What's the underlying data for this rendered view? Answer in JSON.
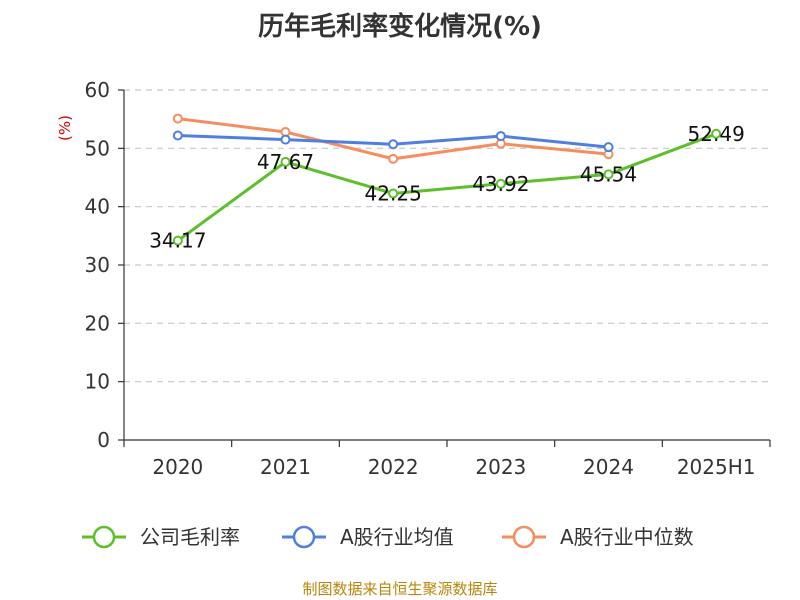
{
  "chart_data": {
    "type": "line",
    "title": "历年毛利率变化情况(%)",
    "ylabel": "(%)",
    "categories": [
      "2020",
      "2021",
      "2022",
      "2023",
      "2024",
      "2025H1"
    ],
    "ylim": [
      0,
      60
    ],
    "yticks": [
      0,
      10,
      20,
      30,
      40,
      50,
      60
    ],
    "grid": true,
    "legend_position": "bottom",
    "series": [
      {
        "name": "公司毛利率",
        "color": "#5cc02a",
        "values": [
          34.17,
          47.67,
          42.25,
          43.92,
          45.54,
          52.49
        ],
        "show_labels": true
      },
      {
        "name": "A股行业均值",
        "color": "#4f7fe0",
        "values": [
          52.2,
          51.5,
          50.7,
          52.1,
          50.2,
          null
        ],
        "show_labels": false
      },
      {
        "name": "A股行业中位数",
        "color": "#f58d5e",
        "values": [
          55.1,
          52.8,
          48.2,
          50.8,
          49.0,
          null
        ],
        "show_labels": false
      }
    ]
  },
  "source_note": "制图数据来自恒生聚源数据库"
}
